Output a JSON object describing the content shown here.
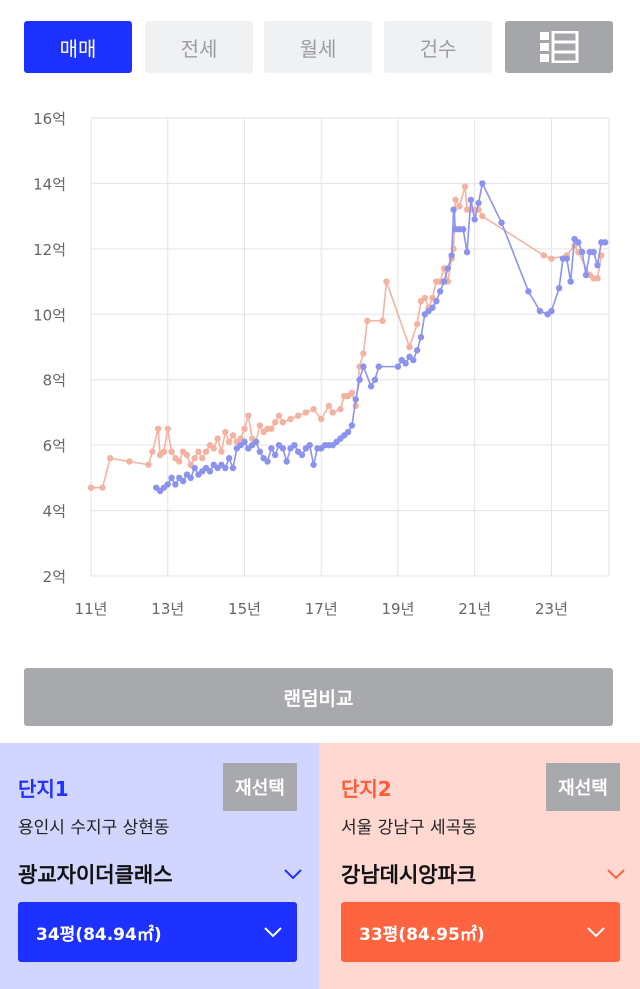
{
  "tabs": [
    {
      "label": "매매",
      "active": true
    },
    {
      "label": "전세",
      "active": false
    },
    {
      "label": "월세",
      "active": false
    },
    {
      "label": "건수",
      "active": false
    }
  ],
  "list_view_icon": "list-view-icon",
  "chart_data": {
    "type": "line",
    "xlabel": "",
    "ylabel": "",
    "x_ticks": [
      "11년",
      "13년",
      "15년",
      "17년",
      "19년",
      "21년",
      "23년"
    ],
    "y_ticks": [
      "2억",
      "4억",
      "6억",
      "8억",
      "10억",
      "12억",
      "14억",
      "16억"
    ],
    "xlim": [
      2011.0,
      2024.1
    ],
    "ylim": [
      2,
      16
    ],
    "grid": true,
    "series": [
      {
        "color": "#8b93ee",
        "points": [
          [
            2012.7,
            4.7
          ],
          [
            2012.8,
            4.6
          ],
          [
            2012.9,
            4.7
          ],
          [
            2013.0,
            4.8
          ],
          [
            2013.1,
            5.0
          ],
          [
            2013.2,
            4.8
          ],
          [
            2013.3,
            5.0
          ],
          [
            2013.4,
            4.9
          ],
          [
            2013.5,
            5.1
          ],
          [
            2013.6,
            5.0
          ],
          [
            2013.7,
            5.3
          ],
          [
            2013.8,
            5.1
          ],
          [
            2013.9,
            5.2
          ],
          [
            2014.0,
            5.3
          ],
          [
            2014.1,
            5.2
          ],
          [
            2014.2,
            5.4
          ],
          [
            2014.3,
            5.3
          ],
          [
            2014.4,
            5.4
          ],
          [
            2014.5,
            5.3
          ],
          [
            2014.6,
            5.6
          ],
          [
            2014.7,
            5.3
          ],
          [
            2014.8,
            5.9
          ],
          [
            2014.9,
            6.0
          ],
          [
            2015.0,
            6.1
          ],
          [
            2015.1,
            5.9
          ],
          [
            2015.2,
            6.0
          ],
          [
            2015.3,
            6.1
          ],
          [
            2015.4,
            5.8
          ],
          [
            2015.5,
            5.6
          ],
          [
            2015.6,
            5.5
          ],
          [
            2015.7,
            5.9
          ],
          [
            2015.8,
            5.7
          ],
          [
            2015.9,
            6.0
          ],
          [
            2016.0,
            5.9
          ],
          [
            2016.1,
            5.5
          ],
          [
            2016.2,
            5.9
          ],
          [
            2016.3,
            6.0
          ],
          [
            2016.4,
            5.8
          ],
          [
            2016.5,
            5.7
          ],
          [
            2016.6,
            5.9
          ],
          [
            2016.7,
            6.0
          ],
          [
            2016.8,
            5.4
          ],
          [
            2016.9,
            5.9
          ],
          [
            2017.0,
            5.9
          ],
          [
            2017.1,
            6.0
          ],
          [
            2017.2,
            6.0
          ],
          [
            2017.3,
            6.0
          ],
          [
            2017.4,
            6.1
          ],
          [
            2017.5,
            6.2
          ],
          [
            2017.6,
            6.3
          ],
          [
            2017.7,
            6.4
          ],
          [
            2017.8,
            6.6
          ],
          [
            2017.9,
            7.4
          ],
          [
            2018.0,
            8.0
          ],
          [
            2018.1,
            8.4
          ],
          [
            2018.3,
            7.8
          ],
          [
            2018.4,
            8.0
          ],
          [
            2018.5,
            8.4
          ],
          [
            2019.0,
            8.4
          ],
          [
            2019.1,
            8.6
          ],
          [
            2019.2,
            8.5
          ],
          [
            2019.3,
            8.7
          ],
          [
            2019.4,
            8.6
          ],
          [
            2019.5,
            8.9
          ],
          [
            2019.6,
            9.3
          ],
          [
            2019.7,
            10.0
          ],
          [
            2019.8,
            10.1
          ],
          [
            2019.9,
            10.2
          ],
          [
            2020.0,
            10.4
          ],
          [
            2020.1,
            10.7
          ],
          [
            2020.2,
            11.0
          ],
          [
            2020.3,
            11.4
          ],
          [
            2020.4,
            11.8
          ],
          [
            2020.45,
            13.2
          ],
          [
            2020.5,
            12.6
          ],
          [
            2020.6,
            12.6
          ],
          [
            2020.7,
            12.6
          ],
          [
            2020.8,
            11.9
          ],
          [
            2020.9,
            13.5
          ],
          [
            2021.0,
            12.9
          ],
          [
            2021.1,
            13.4
          ],
          [
            2021.2,
            14.0
          ],
          [
            2021.7,
            12.8
          ],
          [
            2022.4,
            10.7
          ],
          [
            2022.7,
            10.1
          ],
          [
            2022.9,
            10.0
          ],
          [
            2023.0,
            10.1
          ],
          [
            2023.2,
            10.8
          ],
          [
            2023.3,
            11.7
          ],
          [
            2023.4,
            11.7
          ],
          [
            2023.5,
            11.0
          ],
          [
            2023.6,
            12.3
          ],
          [
            2023.7,
            12.2
          ],
          [
            2023.8,
            11.9
          ],
          [
            2023.9,
            11.2
          ],
          [
            2024.0,
            11.9
          ],
          [
            2024.1,
            11.9
          ],
          [
            2024.2,
            11.5
          ],
          [
            2024.3,
            12.2
          ],
          [
            2024.4,
            12.2
          ]
        ]
      },
      {
        "color": "#f4b3a0",
        "points": [
          [
            2011.0,
            4.7
          ],
          [
            2011.3,
            4.7
          ],
          [
            2011.5,
            5.6
          ],
          [
            2012.0,
            5.5
          ],
          [
            2012.5,
            5.4
          ],
          [
            2012.6,
            5.8
          ],
          [
            2012.75,
            6.5
          ],
          [
            2012.8,
            5.7
          ],
          [
            2012.9,
            5.8
          ],
          [
            2013.0,
            6.5
          ],
          [
            2013.1,
            5.8
          ],
          [
            2013.2,
            5.6
          ],
          [
            2013.3,
            5.5
          ],
          [
            2013.4,
            5.8
          ],
          [
            2013.5,
            5.7
          ],
          [
            2013.6,
            5.4
          ],
          [
            2013.7,
            5.6
          ],
          [
            2013.8,
            5.8
          ],
          [
            2013.9,
            5.6
          ],
          [
            2014.0,
            5.8
          ],
          [
            2014.1,
            6.0
          ],
          [
            2014.2,
            5.9
          ],
          [
            2014.3,
            6.2
          ],
          [
            2014.4,
            5.8
          ],
          [
            2014.5,
            6.4
          ],
          [
            2014.6,
            6.1
          ],
          [
            2014.7,
            6.3
          ],
          [
            2014.8,
            6.1
          ],
          [
            2014.9,
            6.2
          ],
          [
            2015.0,
            6.5
          ],
          [
            2015.1,
            6.9
          ],
          [
            2015.2,
            6.2
          ],
          [
            2015.3,
            6.1
          ],
          [
            2015.4,
            6.6
          ],
          [
            2015.5,
            6.4
          ],
          [
            2015.6,
            6.5
          ],
          [
            2015.7,
            6.5
          ],
          [
            2015.8,
            6.7
          ],
          [
            2015.9,
            6.9
          ],
          [
            2016.0,
            6.7
          ],
          [
            2016.2,
            6.8
          ],
          [
            2016.4,
            6.9
          ],
          [
            2016.6,
            7.0
          ],
          [
            2016.8,
            7.1
          ],
          [
            2017.0,
            6.8
          ],
          [
            2017.2,
            7.2
          ],
          [
            2017.3,
            7.0
          ],
          [
            2017.5,
            7.1
          ],
          [
            2017.6,
            7.5
          ],
          [
            2017.7,
            7.5
          ],
          [
            2017.8,
            7.6
          ],
          [
            2017.9,
            7.2
          ],
          [
            2018.0,
            8.4
          ],
          [
            2018.1,
            8.8
          ],
          [
            2018.2,
            9.8
          ],
          [
            2018.6,
            9.8
          ],
          [
            2018.7,
            11.0
          ],
          [
            2019.3,
            9.0
          ],
          [
            2019.5,
            9.7
          ],
          [
            2019.6,
            10.4
          ],
          [
            2019.7,
            10.5
          ],
          [
            2019.8,
            10.2
          ],
          [
            2019.9,
            10.5
          ],
          [
            2020.0,
            11.0
          ],
          [
            2020.1,
            11.0
          ],
          [
            2020.2,
            11.4
          ],
          [
            2020.3,
            11.0
          ],
          [
            2020.4,
            11.7
          ],
          [
            2020.45,
            12.0
          ],
          [
            2020.5,
            13.5
          ],
          [
            2020.6,
            13.3
          ],
          [
            2020.75,
            13.9
          ],
          [
            2020.8,
            13.2
          ],
          [
            2020.9,
            13.2
          ],
          [
            2021.0,
            13.2
          ],
          [
            2021.1,
            13.2
          ],
          [
            2021.2,
            13.0
          ],
          [
            2022.8,
            11.8
          ],
          [
            2023.0,
            11.7
          ],
          [
            2023.4,
            11.8
          ],
          [
            2023.6,
            12.1
          ],
          [
            2023.7,
            11.9
          ],
          [
            2024.0,
            11.2
          ],
          [
            2024.1,
            11.1
          ],
          [
            2024.2,
            11.1
          ],
          [
            2024.3,
            11.8
          ]
        ]
      }
    ]
  },
  "random_compare_label": "랜덤비교",
  "panel1": {
    "title": "단지1",
    "reselect_label": "재선택",
    "location": "용인시 수지구 상현동",
    "apartment": "광교자이더클래스",
    "size_label": "34평(84.94㎡)",
    "accent": "#1e32ff"
  },
  "panel2": {
    "title": "단지2",
    "reselect_label": "재선택",
    "location": "서울 강남구 세곡동",
    "apartment": "강남데시앙파크",
    "size_label": "33평(84.95㎡)",
    "accent": "#ff6440"
  }
}
